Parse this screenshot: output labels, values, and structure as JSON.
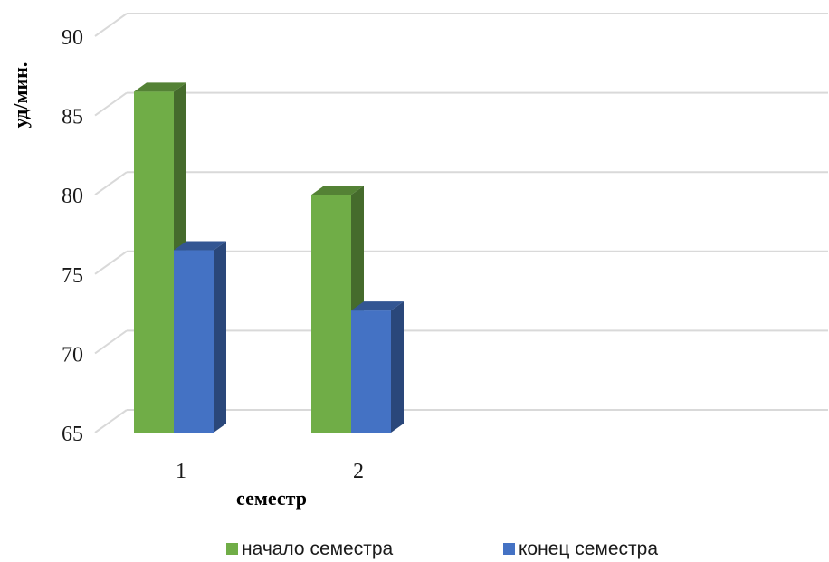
{
  "chart_data": {
    "type": "bar",
    "categories": [
      "1",
      "2"
    ],
    "series": [
      {
        "name": "начало семестра",
        "values": [
          86.5,
          80.0
        ],
        "color": "#70ad47"
      },
      {
        "name": "конец семестра",
        "values": [
          76.5,
          72.7
        ],
        "color": "#4472c4"
      }
    ],
    "xlabel": "семестр",
    "ylabel": "уд/мин.",
    "ylim": [
      65,
      90
    ],
    "yticks": [
      65,
      70,
      75,
      80,
      85,
      90
    ],
    "grid": true,
    "legend_position": "bottom",
    "style": "3d-clustered-column"
  }
}
